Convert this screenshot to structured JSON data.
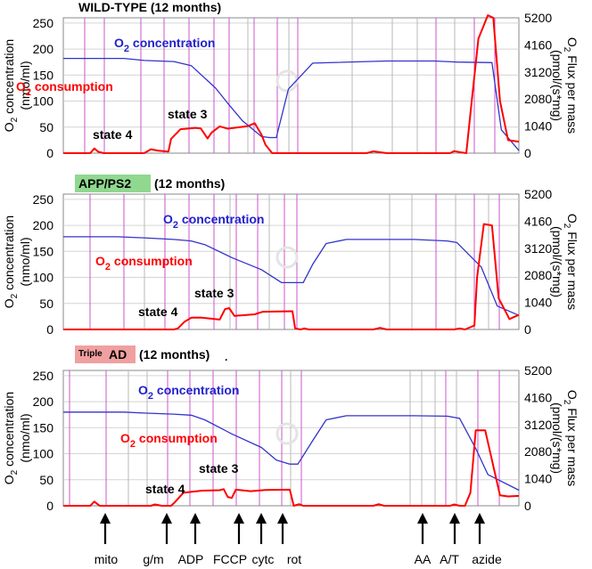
{
  "chart_data": [
    {
      "type": "line",
      "title_main": "WILD-TYPE (12 months)",
      "title_prefix": "",
      "title_boxed": "",
      "title_box_color": "",
      "ylabel_left": "O2 concentration (nmo/ml)",
      "ylabel_right": "O2 Flux per mass (pmol/(s*mg)",
      "ylim_left": [
        0,
        260
      ],
      "ylim_right": [
        0,
        5200
      ],
      "yticks_left": [
        "250",
        "200",
        "150",
        "100",
        "50",
        "0"
      ],
      "yticks_right": [
        "5200",
        "4160",
        "3120",
        "2080",
        "1040",
        "0"
      ],
      "annotations": {
        "conc": "O2 concentration",
        "cons": "O2 consumption",
        "state3": "state 3",
        "state4": "state 4"
      },
      "series": [
        {
          "name": "O2 concentration",
          "color": "#3333cc",
          "axis": "left",
          "x": [
            0,
            4.5,
            6.0,
            8.2,
            9.5,
            11.3,
            12.2,
            13.3,
            14.7,
            15.3,
            15.8,
            16.7,
            18.5,
            24.0,
            27.5,
            29.2,
            31.8,
            32.5,
            33.8
          ],
          "y": [
            182,
            182,
            178,
            176,
            168,
            125,
            96,
            62,
            32,
            30,
            30,
            123,
            173,
            177,
            177,
            175,
            174,
            45,
            5
          ]
        },
        {
          "name": "O2 consumption",
          "color": "#ff0000",
          "axis": "right",
          "x": [
            0,
            2.0,
            2.3,
            2.6,
            3.0,
            6.0,
            6.5,
            7.0,
            7.8,
            8.0,
            8.7,
            9.8,
            10.2,
            10.7,
            11.0,
            11.6,
            12.2,
            13.7,
            14.2,
            14.7,
            15.0,
            15.5,
            22.5,
            23.0,
            23.4,
            24.0,
            28.7,
            29.0,
            29.4,
            29.9,
            30.3,
            30.8,
            31.5,
            31.9,
            32.4,
            33.0,
            33.8
          ],
          "y": [
            0,
            0,
            180,
            50,
            0,
            0,
            150,
            100,
            60,
            550,
            920,
            970,
            950,
            560,
            790,
            1030,
            940,
            1040,
            1150,
            720,
            320,
            0,
            0,
            70,
            40,
            0,
            0,
            80,
            40,
            0,
            2000,
            4400,
            5300,
            5200,
            2000,
            500,
            440
          ]
        }
      ],
      "events": []
    },
    {
      "type": "line",
      "title_main": "(12 months)",
      "title_prefix": "",
      "title_boxed": "APP/PS2",
      "title_box_color": "#90d890",
      "ylabel_left": "O2 concentration (nmo/ml)",
      "ylabel_right": "O2 Flux per mass (pmol/(s*mg)",
      "ylim_left": [
        0,
        260
      ],
      "ylim_right": [
        0,
        5200
      ],
      "yticks_left": [
        "250",
        "200",
        "150",
        "100",
        "50",
        "0"
      ],
      "yticks_right": [
        "5200",
        "4160",
        "3120",
        "2080",
        "1040",
        "0"
      ],
      "annotations": {
        "conc": "O2 concentration",
        "cons": "O2 consumption",
        "state3": "state 3",
        "state4": "state 4"
      },
      "series": [
        {
          "name": "O2 concentration",
          "color": "#3333cc",
          "axis": "left",
          "x": [
            0,
            4.0,
            6.0,
            8.2,
            9.5,
            10.5,
            12.5,
            14.7,
            16.2,
            17.0,
            17.8,
            18.5,
            19.5,
            21.0,
            26.0,
            28.5,
            29.2,
            31.0,
            32.2,
            33.8
          ],
          "y": [
            178,
            178,
            176,
            173,
            170,
            163,
            138,
            115,
            90,
            90,
            90,
            125,
            165,
            173,
            173,
            170,
            167,
            120,
            45,
            27
          ]
        },
        {
          "name": "O2 consumption",
          "color": "#ff0000",
          "axis": "right",
          "x": [
            0,
            8.2,
            8.5,
            9.0,
            9.5,
            10.2,
            11.6,
            12.0,
            12.3,
            12.7,
            14.2,
            14.8,
            17.0,
            17.2,
            17.6,
            17.9,
            18.2,
            23.0,
            23.5,
            24.0,
            29.0,
            29.4,
            29.8,
            30.5,
            30.7,
            31.2,
            31.8,
            32.3,
            33.1,
            33.8
          ],
          "y": [
            0,
            0,
            40,
            300,
            450,
            460,
            380,
            780,
            820,
            520,
            580,
            680,
            700,
            40,
            0,
            40,
            0,
            0,
            60,
            0,
            0,
            40,
            0,
            150,
            2000,
            4050,
            4000,
            1200,
            400,
            560
          ]
        }
      ],
      "events": []
    },
    {
      "type": "line",
      "title_main": "(12 months)",
      "title_prefix": "Triple",
      "title_boxed": "AD",
      "title_box_color": "#f0a0a0",
      "ylabel_left": "O2 concentration (nmo/ml)",
      "ylabel_right": "O2 Flux per mass (pmol/(s*mg)",
      "ylim_left": [
        0,
        260
      ],
      "ylim_right": [
        0,
        5200
      ],
      "yticks_left": [
        "250",
        "200",
        "150",
        "100",
        "50",
        "0"
      ],
      "yticks_right": [
        "5200",
        "4160",
        "3120",
        "2080",
        "1040",
        "0"
      ],
      "annotations": {
        "conc": "O2 concentration",
        "cons": "O2 consumption",
        "state3": "state 3",
        "state4": "state 4"
      },
      "series": [
        {
          "name": "O2 concentration",
          "color": "#3333cc",
          "axis": "left",
          "x": [
            0,
            4.5,
            6.0,
            8.2,
            9.5,
            10.5,
            12.5,
            14.7,
            15.8,
            16.8,
            17.4,
            18.5,
            19.5,
            21.0,
            26.0,
            28.5,
            29.4,
            30.6,
            31.5,
            33.8
          ],
          "y": [
            180,
            180,
            178,
            176,
            174,
            165,
            138,
            112,
            88,
            80,
            80,
            125,
            165,
            173,
            173,
            172,
            168,
            110,
            60,
            30
          ]
        },
        {
          "name": "O2 consumption",
          "color": "#ff0000",
          "axis": "right",
          "x": [
            0,
            2.0,
            2.3,
            2.7,
            3.0,
            6.5,
            6.8,
            7.3,
            8.0,
            8.3,
            8.9,
            10.3,
            11.6,
            11.9,
            12.2,
            12.5,
            12.8,
            13.9,
            15.0,
            16.8,
            17.1,
            17.5,
            17.8,
            18.2,
            23.0,
            23.4,
            23.8,
            24.2,
            28.7,
            29.0,
            29.4,
            29.8,
            30.2,
            30.6,
            31.3,
            32.0,
            32.4,
            33.0,
            33.8
          ],
          "y": [
            0,
            0,
            160,
            0,
            0,
            0,
            50,
            0,
            0,
            150,
            500,
            580,
            600,
            640,
            340,
            300,
            620,
            560,
            610,
            620,
            0,
            60,
            0,
            0,
            0,
            60,
            0,
            0,
            0,
            50,
            0,
            0,
            500,
            2900,
            2900,
            1300,
            400,
            360,
            380
          ]
        }
      ],
      "events": [
        "mito",
        "g/m",
        "ADP",
        "FCCP",
        "cytc",
        "rot",
        "AA",
        "A/T",
        "azide"
      ],
      "event_x": [
        2.4,
        6.3,
        8.2,
        11.6,
        13.3,
        14.8,
        23.3,
        25.5,
        27.3
      ]
    }
  ]
}
